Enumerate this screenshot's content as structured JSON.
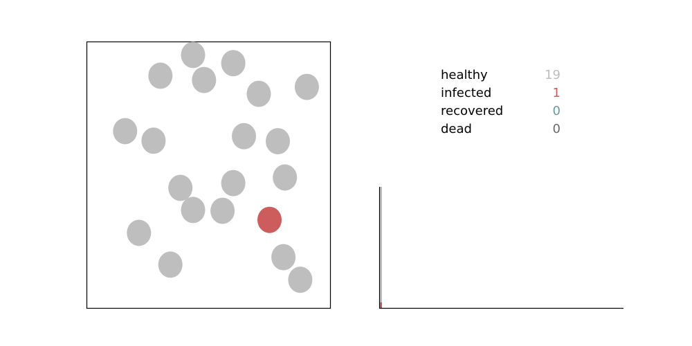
{
  "colors": {
    "healthy": "#bebebe",
    "infected": "#cd5c5c",
    "recovered": "#5f9ea0",
    "dead": "#696969",
    "axis": "#000000"
  },
  "legend": {
    "healthy": {
      "label": "healthy",
      "count": "19"
    },
    "infected": {
      "label": "infected",
      "count": "1"
    },
    "recovered": {
      "label": "recovered",
      "count": "0"
    },
    "dead": {
      "label": "dead",
      "count": "0"
    }
  },
  "chart_data": [
    {
      "type": "scatter",
      "xlim": [
        0,
        1
      ],
      "ylim": [
        0,
        1
      ],
      "grid": false,
      "points": [
        {
          "x": 0.436,
          "y": 0.951,
          "status": "healthy"
        },
        {
          "x": 0.302,
          "y": 0.873,
          "status": "healthy"
        },
        {
          "x": 0.481,
          "y": 0.857,
          "status": "healthy"
        },
        {
          "x": 0.601,
          "y": 0.92,
          "status": "healthy"
        },
        {
          "x": 0.706,
          "y": 0.805,
          "status": "healthy"
        },
        {
          "x": 0.903,
          "y": 0.831,
          "status": "healthy"
        },
        {
          "x": 0.157,
          "y": 0.665,
          "status": "healthy"
        },
        {
          "x": 0.274,
          "y": 0.629,
          "status": "healthy"
        },
        {
          "x": 0.645,
          "y": 0.646,
          "status": "healthy"
        },
        {
          "x": 0.784,
          "y": 0.627,
          "status": "healthy"
        },
        {
          "x": 0.813,
          "y": 0.491,
          "status": "healthy"
        },
        {
          "x": 0.601,
          "y": 0.47,
          "status": "healthy"
        },
        {
          "x": 0.384,
          "y": 0.452,
          "status": "healthy"
        },
        {
          "x": 0.436,
          "y": 0.369,
          "status": "healthy"
        },
        {
          "x": 0.557,
          "y": 0.366,
          "status": "healthy"
        },
        {
          "x": 0.75,
          "y": 0.332,
          "status": "infected"
        },
        {
          "x": 0.214,
          "y": 0.283,
          "status": "healthy"
        },
        {
          "x": 0.343,
          "y": 0.164,
          "status": "healthy"
        },
        {
          "x": 0.807,
          "y": 0.192,
          "status": "healthy"
        },
        {
          "x": 0.876,
          "y": 0.107,
          "status": "healthy"
        }
      ]
    },
    {
      "type": "area",
      "stacked": true,
      "xlim": [
        0,
        100
      ],
      "ylim": [
        0,
        20
      ],
      "grid": false,
      "x": [
        0,
        1
      ],
      "series": [
        {
          "key": "infected",
          "values": [
            1,
            1
          ]
        },
        {
          "key": "healthy",
          "values": [
            19,
            19
          ]
        }
      ]
    }
  ]
}
